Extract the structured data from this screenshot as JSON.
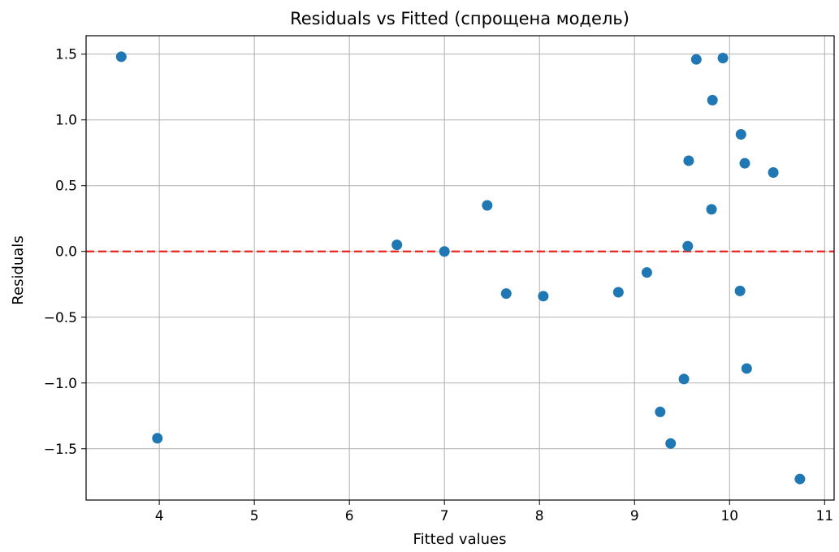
{
  "chart_data": {
    "type": "scatter",
    "title": "Residuals vs Fitted (спрощена модель)",
    "xlabel": "Fitted values",
    "ylabel": "Residuals",
    "xlim": [
      3.23,
      11.1
    ],
    "ylim": [
      -1.89,
      1.64
    ],
    "xticks": [
      4,
      5,
      6,
      7,
      8,
      9,
      10,
      11
    ],
    "yticks": [
      -1.5,
      -1.0,
      -0.5,
      0.0,
      0.5,
      1.0,
      1.5
    ],
    "ytick_labels": [
      "−1.5",
      "−1.0",
      "−0.5",
      "0.0",
      "0.5",
      "1.0",
      "1.5"
    ],
    "grid": true,
    "reference_line": {
      "y": 0,
      "color": "#e8261f",
      "style": "dashed"
    },
    "point_color": "#1f77b4",
    "points": [
      {
        "x": 3.6,
        "y": 1.48
      },
      {
        "x": 3.98,
        "y": -1.42
      },
      {
        "x": 6.5,
        "y": 0.05
      },
      {
        "x": 7.0,
        "y": 0.0
      },
      {
        "x": 7.45,
        "y": 0.35
      },
      {
        "x": 7.65,
        "y": -0.32
      },
      {
        "x": 8.04,
        "y": -0.34
      },
      {
        "x": 8.83,
        "y": -0.31
      },
      {
        "x": 9.13,
        "y": -0.16
      },
      {
        "x": 9.27,
        "y": -1.22
      },
      {
        "x": 9.38,
        "y": -1.46
      },
      {
        "x": 9.52,
        "y": -0.97
      },
      {
        "x": 9.56,
        "y": 0.04
      },
      {
        "x": 9.57,
        "y": 0.69
      },
      {
        "x": 9.65,
        "y": 1.46
      },
      {
        "x": 9.81,
        "y": 0.32
      },
      {
        "x": 9.82,
        "y": 1.15
      },
      {
        "x": 9.93,
        "y": 1.47
      },
      {
        "x": 10.11,
        "y": -0.3
      },
      {
        "x": 10.12,
        "y": 0.89
      },
      {
        "x": 10.16,
        "y": 0.67
      },
      {
        "x": 10.18,
        "y": -0.89
      },
      {
        "x": 10.46,
        "y": 0.6
      },
      {
        "x": 10.74,
        "y": -1.73
      }
    ]
  }
}
